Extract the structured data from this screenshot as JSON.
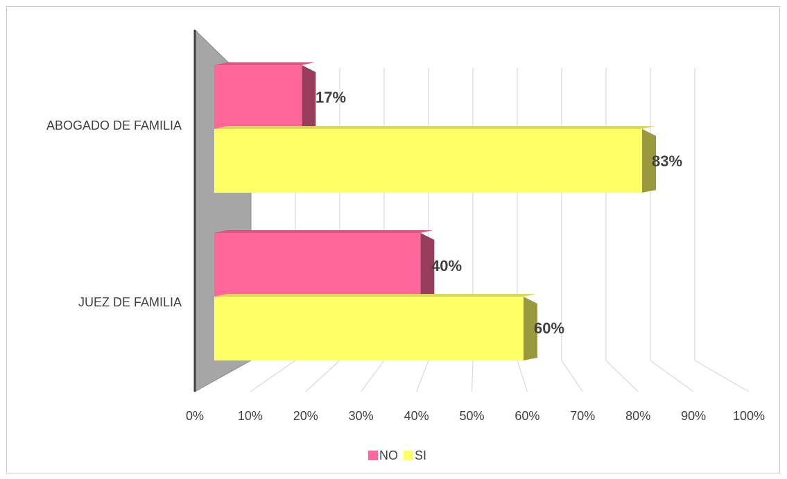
{
  "chart_data": {
    "type": "bar",
    "orientation": "horizontal",
    "style": "3d",
    "categories": [
      "ABOGADO DE FAMILIA",
      "JUEZ DE FAMILIA"
    ],
    "series": [
      {
        "name": "NO",
        "values": [
          17,
          40
        ],
        "data_labels": [
          "17%",
          "40%"
        ],
        "color": "#ff6699"
      },
      {
        "name": "SI",
        "values": [
          83,
          60
        ],
        "data_labels": [
          "83%",
          "60%"
        ],
        "color": "#ffff66"
      }
    ],
    "x_ticks": [
      "0%",
      "10%",
      "20%",
      "30%",
      "40%",
      "50%",
      "60%",
      "70%",
      "80%",
      "90%",
      "100%"
    ],
    "xlim": [
      0,
      100
    ],
    "grid": true,
    "legend": "bottom"
  }
}
